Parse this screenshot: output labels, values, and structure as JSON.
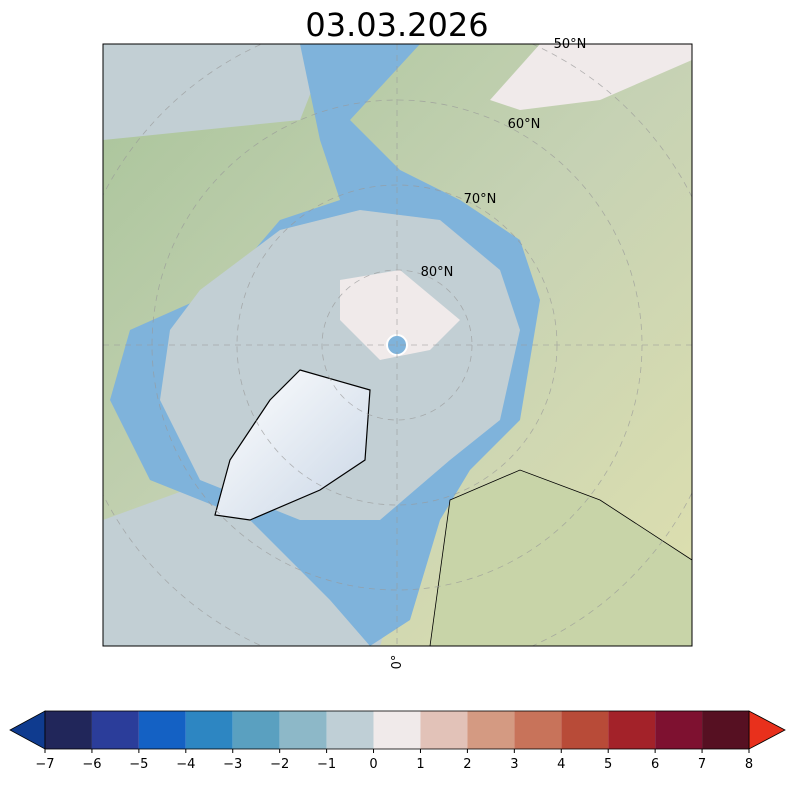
{
  "title": "03.03.2026",
  "map": {
    "lat_labels": [
      "50°N",
      "60°N",
      "70°N",
      "80°N"
    ],
    "lon_labels": [
      "0°"
    ]
  },
  "colorbar": {
    "ticks": [
      {
        "value": -7,
        "label": "−7"
      },
      {
        "value": -6,
        "label": "−6"
      },
      {
        "value": -5,
        "label": "−5"
      },
      {
        "value": -4,
        "label": "−4"
      },
      {
        "value": -3,
        "label": "−3"
      },
      {
        "value": -2,
        "label": "−2"
      },
      {
        "value": -1,
        "label": "−1"
      },
      0,
      1,
      2,
      3,
      4,
      5,
      6,
      7,
      8
    ],
    "colors": [
      "#21265a",
      "#2b3d9a",
      "#1461c4",
      "#2d86c2",
      "#5aa0c0",
      "#8db8c8",
      "#bfcfd6",
      "#f0eaea",
      "#e2c2b8",
      "#d49a82",
      "#c8735a",
      "#b84b38",
      "#a32229",
      "#7e1130",
      "#561022"
    ],
    "extend_colors": [
      "#0f3b8f",
      "#e8301c"
    ]
  }
}
